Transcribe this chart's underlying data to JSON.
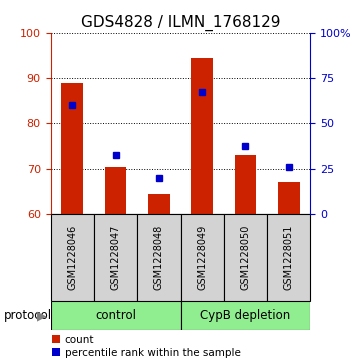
{
  "title": "GDS4828 / ILMN_1768129",
  "categories": [
    "GSM1228046",
    "GSM1228047",
    "GSM1228048",
    "GSM1228049",
    "GSM1228050",
    "GSM1228051"
  ],
  "bar_values": [
    89.0,
    70.5,
    64.5,
    94.5,
    73.0,
    67.0
  ],
  "blue_markers": [
    84.0,
    73.0,
    68.0,
    87.0,
    75.0,
    70.5
  ],
  "ylim_left": [
    60,
    100
  ],
  "ylim_right": [
    0,
    100
  ],
  "right_yticks": [
    0,
    25,
    50,
    75,
    100
  ],
  "right_yticklabels": [
    "0",
    "25",
    "50",
    "75",
    "100%"
  ],
  "left_yticks": [
    60,
    70,
    80,
    90,
    100
  ],
  "bar_color": "#CC2200",
  "marker_color": "#0000CC",
  "bar_bottom": 60,
  "protocol_label_control": "control",
  "protocol_label_depletion": "CypB depletion",
  "legend_count_label": "count",
  "legend_percentile_label": "percentile rank within the sample",
  "protocol_text": "protocol",
  "gray_bg": "#D3D3D3",
  "green_bg": "#90EE90",
  "title_fontsize": 11,
  "tick_fontsize": 8
}
